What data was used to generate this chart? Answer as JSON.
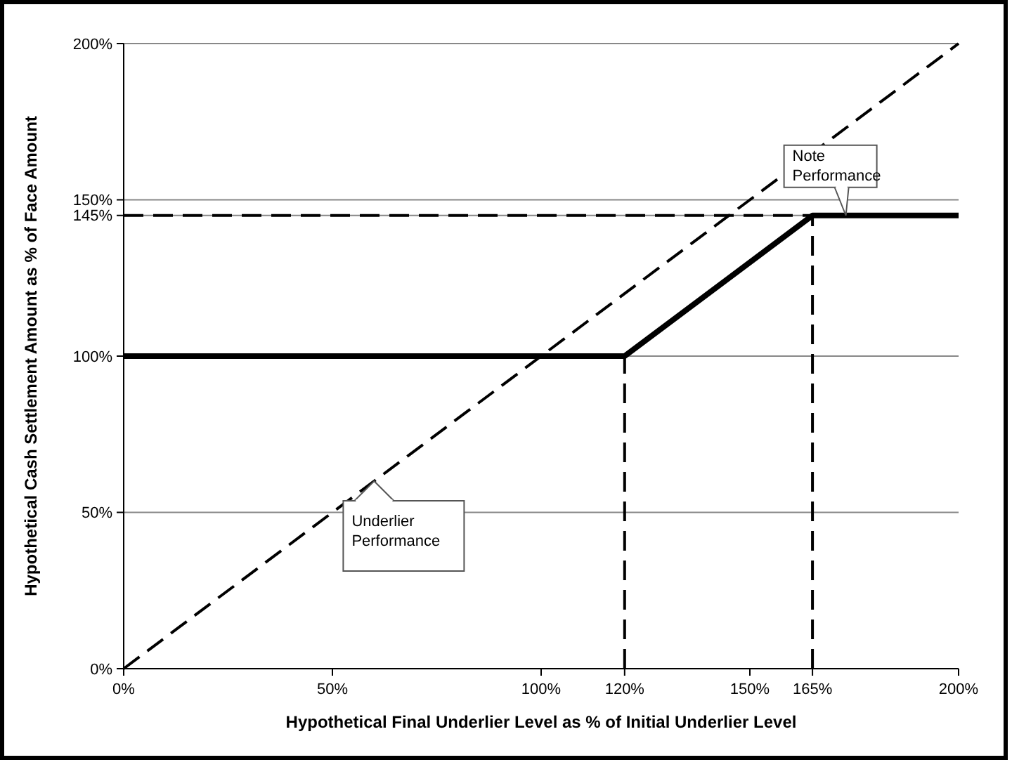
{
  "chart_data": {
    "type": "line",
    "xlabel": "Hypothetical Final Underlier Level as % of Initial Underlier Level",
    "ylabel": "Hypothetical Cash Settlement Amount as % of Face Amount",
    "xlim": [
      0,
      200
    ],
    "ylim": [
      0,
      200
    ],
    "xticks": [
      {
        "value": 0,
        "label": "0%"
      },
      {
        "value": 50,
        "label": "50%"
      },
      {
        "value": 100,
        "label": "100%"
      },
      {
        "value": 120,
        "label": "120%"
      },
      {
        "value": 150,
        "label": "150%"
      },
      {
        "value": 165,
        "label": "165%"
      },
      {
        "value": 200,
        "label": "200%"
      }
    ],
    "yticks": [
      {
        "value": 0,
        "label": "0%"
      },
      {
        "value": 50,
        "label": "50%"
      },
      {
        "value": 100,
        "label": "100%"
      },
      {
        "value": 145,
        "label": "145%"
      },
      {
        "value": 150,
        "label": "150%"
      },
      {
        "value": 200,
        "label": "200%"
      }
    ],
    "grid": "y",
    "series": [
      {
        "color": "#000000",
        "line_style": "dashed",
        "x": [
          0,
          200
        ],
        "values": [
          0,
          200
        ]
      },
      {
        "color": "#000000",
        "line_style": "solid",
        "x": [
          0,
          120,
          165,
          200
        ],
        "values": [
          100,
          100,
          145,
          145
        ]
      },
      {
        "color": "#000000",
        "line_style": "dashed",
        "x": [
          0,
          165
        ],
        "values": [
          145,
          145
        ]
      },
      {
        "color": "#000000",
        "line_style": "dashed",
        "x": [
          120,
          120
        ],
        "values": [
          0,
          100
        ]
      },
      {
        "color": "#000000",
        "line_style": "dashed",
        "x": [
          165,
          165
        ],
        "values": [
          0,
          145
        ]
      }
    ],
    "annotations": [
      {
        "text": "Note Performance",
        "x": 173,
        "y": 145
      },
      {
        "text": "Underlier Performance",
        "x": 60,
        "y": 60
      }
    ]
  }
}
